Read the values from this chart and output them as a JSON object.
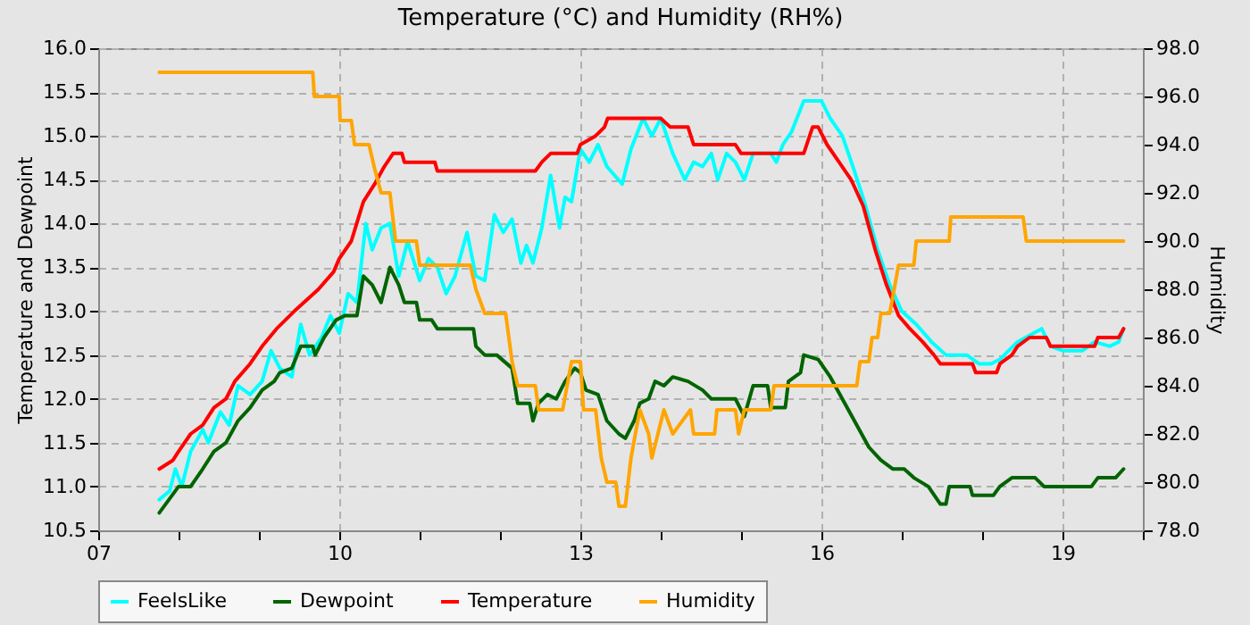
{
  "chart_data": {
    "type": "line",
    "title": "Temperature (°C) and Humidity (RH%)",
    "ylabel": "Temperature and Dewpoint",
    "y2label": "Humidity",
    "xlim": [
      7,
      20
    ],
    "xticks": [
      {
        "value": 7,
        "label": "07"
      },
      {
        "value": 8,
        "label": null
      },
      {
        "value": 9,
        "label": null
      },
      {
        "value": 10,
        "label": "10"
      },
      {
        "value": 11,
        "label": null
      },
      {
        "value": 12,
        "label": null
      },
      {
        "value": 13,
        "label": "13"
      },
      {
        "value": 14,
        "label": null
      },
      {
        "value": 15,
        "label": null
      },
      {
        "value": 16,
        "label": "16"
      },
      {
        "value": 17,
        "label": null
      },
      {
        "value": 18,
        "label": null
      },
      {
        "value": 19,
        "label": "19"
      },
      {
        "value": 20,
        "label": null
      }
    ],
    "ylim": [
      10.5,
      16
    ],
    "yticks": [
      10.5,
      {
        "value": 11,
        "label": "11.0"
      },
      11.5,
      {
        "value": 12,
        "label": "12.0"
      },
      12.5,
      {
        "value": 13,
        "label": "13.0"
      },
      13.5,
      {
        "value": 14,
        "label": "14.0"
      },
      14.5,
      {
        "value": 15,
        "label": "15.0"
      },
      15.5,
      {
        "value": 16,
        "label": "16.0"
      }
    ],
    "y2lim": [
      78,
      98
    ],
    "y2ticks": [
      {
        "value": 78,
        "label": "78.0"
      },
      {
        "value": 80,
        "label": "80.0"
      },
      {
        "value": 82,
        "label": "82.0"
      },
      {
        "value": 84,
        "label": "84.0"
      },
      {
        "value": 86,
        "label": "86.0"
      },
      {
        "value": 88,
        "label": "88.0"
      },
      {
        "value": 90,
        "label": "90.0"
      },
      {
        "value": 92,
        "label": "92.0"
      },
      {
        "value": 94,
        "label": "94.0"
      },
      {
        "value": 96,
        "label": "96.0"
      },
      {
        "value": 98,
        "label": "98.0"
      }
    ],
    "grid": true,
    "legend": "bottom",
    "series": [
      {
        "name": "FeelsLike",
        "color": "#00ffff",
        "x": [
          7.76,
          7.89,
          7.96,
          8.04,
          8.15,
          8.3,
          8.37,
          8.52,
          8.63,
          8.74,
          8.89,
          9.04,
          9.15,
          9.26,
          9.41,
          9.52,
          9.63,
          9.78,
          9.89,
          10.0,
          10.11,
          10.22,
          10.33,
          10.41,
          10.52,
          10.63,
          10.74,
          10.85,
          11.0,
          11.11,
          11.22,
          11.33,
          11.44,
          11.59,
          11.7,
          11.81,
          11.93,
          12.04,
          12.15,
          12.26,
          12.33,
          12.41,
          12.52,
          12.63,
          12.74,
          12.81,
          12.89,
          13.0,
          13.11,
          13.22,
          13.33,
          13.52,
          13.63,
          13.78,
          13.89,
          14.0,
          14.15,
          14.3,
          14.41,
          14.52,
          14.63,
          14.71,
          14.82,
          14.93,
          15.04,
          15.15,
          15.37,
          15.44,
          15.52,
          15.63,
          15.78,
          16.0,
          16.11,
          16.26,
          16.41,
          16.55,
          16.7,
          16.85,
          17.0,
          17.18,
          17.37,
          17.55,
          17.81,
          17.96,
          18.11,
          18.22,
          18.44,
          18.74,
          18.85,
          19.0,
          19.25,
          19.4,
          19.59,
          19.7,
          19.76
        ],
        "values": [
          10.85,
          10.95,
          11.2,
          11.0,
          11.4,
          11.65,
          11.5,
          11.85,
          11.7,
          12.15,
          12.05,
          12.2,
          12.55,
          12.35,
          12.25,
          12.85,
          12.5,
          12.7,
          12.95,
          12.75,
          13.2,
          13.1,
          14.0,
          13.7,
          13.95,
          14.0,
          13.4,
          13.8,
          13.35,
          13.6,
          13.5,
          13.2,
          13.4,
          13.9,
          13.4,
          13.35,
          14.1,
          13.9,
          14.05,
          13.55,
          13.75,
          13.55,
          13.95,
          14.55,
          13.95,
          14.3,
          14.25,
          14.85,
          14.7,
          14.9,
          14.65,
          14.45,
          14.85,
          15.2,
          15.0,
          15.2,
          14.8,
          14.5,
          14.7,
          14.65,
          14.8,
          14.5,
          14.8,
          14.7,
          14.5,
          14.8,
          14.8,
          14.7,
          14.9,
          15.05,
          15.4,
          15.4,
          15.2,
          15.0,
          14.6,
          14.2,
          13.7,
          13.3,
          13.0,
          12.85,
          12.65,
          12.5,
          12.5,
          12.4,
          12.4,
          12.45,
          12.65,
          12.8,
          12.6,
          12.55,
          12.55,
          12.65,
          12.6,
          12.65,
          12.8
        ]
      },
      {
        "name": "Dewpoint",
        "color": "#006400",
        "x": [
          7.76,
          8.0,
          8.15,
          8.3,
          8.44,
          8.59,
          8.74,
          8.89,
          9.04,
          9.19,
          9.26,
          9.41,
          9.52,
          9.67,
          9.7,
          9.81,
          9.96,
          10.07,
          10.22,
          10.3,
          10.41,
          10.52,
          10.63,
          10.74,
          10.81,
          10.96,
          11.0,
          11.15,
          11.22,
          11.67,
          11.7,
          11.81,
          11.96,
          12.15,
          12.22,
          12.37,
          12.41,
          12.48,
          12.59,
          12.7,
          12.81,
          12.93,
          13.0,
          13.07,
          13.22,
          13.33,
          13.48,
          13.56,
          13.67,
          13.74,
          13.85,
          13.93,
          14.04,
          14.15,
          14.34,
          14.52,
          14.63,
          14.93,
          15.04,
          15.15,
          15.33,
          15.37,
          15.55,
          15.59,
          15.74,
          15.78,
          15.96,
          16.11,
          16.26,
          16.41,
          16.59,
          16.74,
          16.89,
          17.03,
          17.15,
          17.33,
          17.48,
          17.55,
          17.59,
          17.85,
          17.88,
          18.14,
          18.22,
          18.37,
          18.51,
          18.66,
          18.77,
          19.36,
          19.44,
          19.66,
          19.76
        ],
        "values": [
          10.7,
          11.0,
          11.0,
          11.2,
          11.4,
          11.5,
          11.75,
          11.9,
          12.1,
          12.2,
          12.3,
          12.35,
          12.6,
          12.6,
          12.5,
          12.7,
          12.9,
          12.95,
          12.95,
          13.4,
          13.3,
          13.1,
          13.5,
          13.3,
          13.1,
          13.1,
          12.9,
          12.9,
          12.8,
          12.8,
          12.6,
          12.5,
          12.5,
          12.35,
          11.95,
          11.95,
          11.75,
          11.95,
          12.05,
          12.0,
          12.2,
          12.35,
          12.3,
          12.1,
          12.05,
          11.75,
          11.6,
          11.55,
          11.75,
          11.95,
          12.0,
          12.2,
          12.15,
          12.25,
          12.2,
          12.1,
          12.0,
          12.0,
          11.8,
          12.15,
          12.15,
          11.9,
          11.9,
          12.2,
          12.3,
          12.5,
          12.45,
          12.25,
          12.0,
          11.75,
          11.45,
          11.3,
          11.2,
          11.2,
          11.1,
          11.0,
          10.8,
          10.8,
          11.0,
          11.0,
          10.9,
          10.9,
          11.0,
          11.1,
          11.1,
          11.1,
          11.0,
          11.0,
          11.1,
          11.1,
          11.2
        ]
      },
      {
        "name": "Temperature",
        "color": "#ff0000",
        "x": [
          7.76,
          7.93,
          8.0,
          8.15,
          8.3,
          8.44,
          8.59,
          8.7,
          8.89,
          9.04,
          9.22,
          9.44,
          9.56,
          9.74,
          9.93,
          10.0,
          10.15,
          10.3,
          10.44,
          10.56,
          10.67,
          10.78,
          10.81,
          11.19,
          11.22,
          12.44,
          12.52,
          12.63,
          12.96,
          13.0,
          13.19,
          13.3,
          13.34,
          14.0,
          14.12,
          14.34,
          14.41,
          14.93,
          15.0,
          15.78,
          15.89,
          15.96,
          16.07,
          16.22,
          16.37,
          16.52,
          16.67,
          16.81,
          16.96,
          17.1,
          17.26,
          17.4,
          17.48,
          17.88,
          17.92,
          18.18,
          18.22,
          18.37,
          18.44,
          18.59,
          18.8,
          18.85,
          19.4,
          19.44,
          19.7,
          19.76
        ],
        "values": [
          11.2,
          11.3,
          11.4,
          11.6,
          11.7,
          11.9,
          12.0,
          12.2,
          12.4,
          12.6,
          12.8,
          13.0,
          13.1,
          13.25,
          13.45,
          13.6,
          13.8,
          14.25,
          14.45,
          14.65,
          14.8,
          14.8,
          14.7,
          14.7,
          14.6,
          14.6,
          14.7,
          14.8,
          14.8,
          14.9,
          15.0,
          15.1,
          15.2,
          15.2,
          15.1,
          15.1,
          14.9,
          14.9,
          14.8,
          14.8,
          15.1,
          15.1,
          14.9,
          14.7,
          14.5,
          14.2,
          13.7,
          13.3,
          12.95,
          12.8,
          12.65,
          12.5,
          12.4,
          12.4,
          12.3,
          12.3,
          12.4,
          12.5,
          12.6,
          12.7,
          12.7,
          12.6,
          12.6,
          12.7,
          12.7,
          12.8
        ]
      },
      {
        "name": "Humidity",
        "color": "#ffa500",
        "axis": "y2",
        "x": [
          7.76,
          9.67,
          9.69,
          10.0,
          10.01,
          10.15,
          10.19,
          10.37,
          10.44,
          10.52,
          10.63,
          10.7,
          10.96,
          11.0,
          11.63,
          11.7,
          11.81,
          12.07,
          12.15,
          12.22,
          12.44,
          12.48,
          12.78,
          12.89,
          13.0,
          13.04,
          13.19,
          13.26,
          13.33,
          13.44,
          13.48,
          13.56,
          13.63,
          13.74,
          13.85,
          13.89,
          14.04,
          14.15,
          14.37,
          14.41,
          14.67,
          14.7,
          14.93,
          14.97,
          15.04,
          15.37,
          15.41,
          16.44,
          16.48,
          16.59,
          16.63,
          16.7,
          16.74,
          16.85,
          16.96,
          17.15,
          17.18,
          17.59,
          17.61,
          18.51,
          18.55,
          19.76
        ],
        "values": [
          97,
          97,
          96,
          96,
          95,
          95,
          94,
          94,
          93,
          92,
          92,
          90,
          90,
          89,
          89,
          88,
          87,
          87,
          85,
          84,
          84,
          83,
          83,
          85,
          85,
          83,
          83,
          81,
          80,
          80,
          79,
          79,
          81,
          83,
          82,
          81,
          83,
          82,
          83,
          82,
          82,
          83,
          83,
          82,
          83,
          83,
          84,
          84,
          85,
          85,
          86,
          86,
          87,
          87,
          89,
          89,
          90,
          90,
          91,
          91,
          90,
          90
        ]
      }
    ]
  }
}
